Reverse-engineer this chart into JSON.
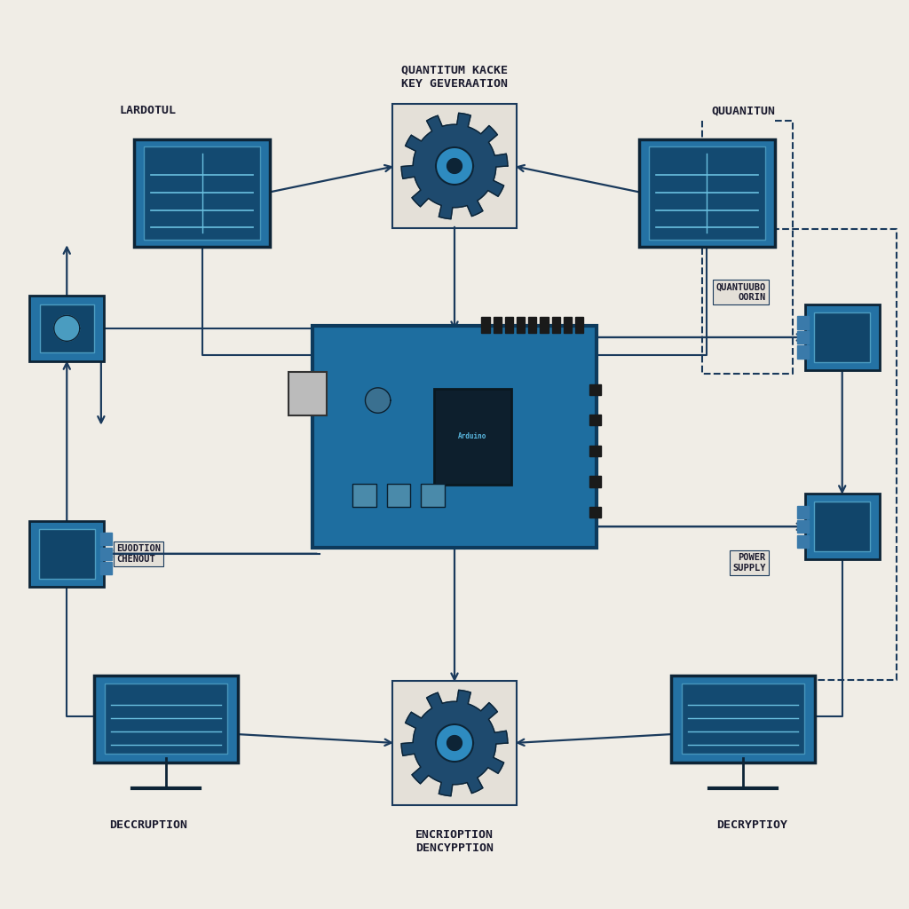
{
  "background_color": "#f0ede6",
  "line_color": "#1a3a5c",
  "box_color_blue": "#2472a4",
  "box_border": "#0d2436",
  "gear_color": "#1e4a6e",
  "gear_center": "#2e8bc0",
  "arduino_color": "#1e6ea0",
  "arduino_dark": "#0d3a5c",
  "labels": {
    "top_left": "LARDOTUL",
    "top_center": "QUANTITUM KACKE\nKEY GEVERAATION",
    "top_right": "QUUANITUN",
    "mid_left": "EUODTION\nCHENOUT",
    "mid_right_top": "QUANTUUBO\nOORIN",
    "mid_right_bot": "POWER\nSUPPLY",
    "bot_left": "DECCRUPTION",
    "bot_center": "ENCRIOPTION\nDENCYPPTION",
    "bot_right": "DECRYPTIOY"
  }
}
